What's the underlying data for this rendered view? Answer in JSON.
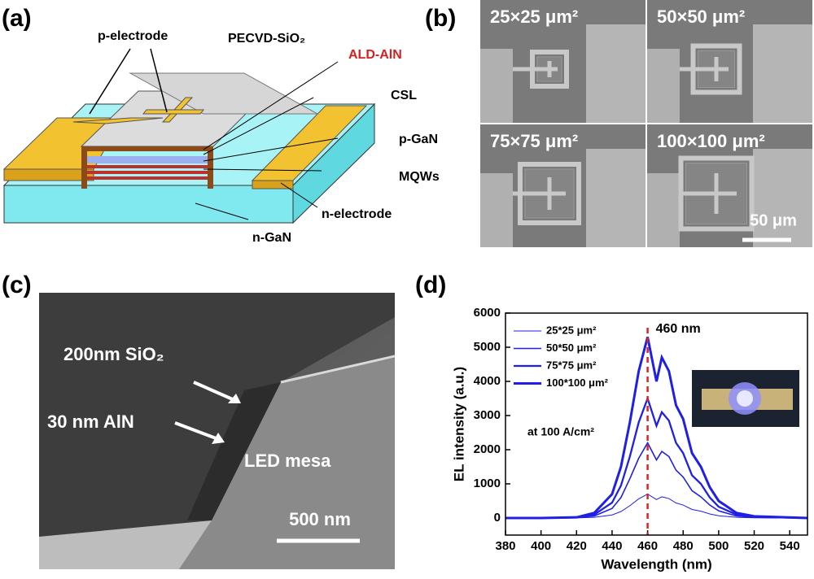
{
  "panels": {
    "a": {
      "label": "(a)",
      "labels": [
        "p-electrode",
        "PECVD-SiO₂",
        "ALD-AlN",
        "CSL",
        "p-GaN",
        "MQWs",
        "n-electrode",
        "n-GaN"
      ]
    },
    "b": {
      "label": "(b)",
      "images": [
        "25×25 μm²",
        "50×50 μm²",
        "75×75 μm²",
        "100×100 μm²"
      ],
      "scale_bar": "50 μm"
    },
    "c": {
      "label": "(c)",
      "labels": [
        "200nm SiO₂",
        "30 nm AlN",
        "LED mesa"
      ],
      "scale_bar": "500 nm"
    }
  },
  "chart_data": {
    "type": "line",
    "label": "(d)",
    "xlabel": "Wavelength (nm)",
    "ylabel": "EL intensity (a.u.)",
    "annotation": "at 100 A/cm²",
    "reference_line": {
      "x": 460,
      "label": "460 nm",
      "color": "#d62728"
    },
    "x": [
      380,
      400,
      420,
      430,
      440,
      445,
      450,
      455,
      460,
      465,
      468,
      472,
      476,
      480,
      485,
      490,
      495,
      500,
      510,
      520,
      550
    ],
    "series": [
      {
        "name": "25*25 μm²",
        "color": "#1f1fe6",
        "line_width": 1,
        "values": [
          0,
          0,
          3,
          20,
          90,
          190,
          360,
          560,
          700,
          540,
          620,
          570,
          440,
          380,
          250,
          200,
          120,
          65,
          20,
          5,
          0
        ]
      },
      {
        "name": "50*50 μm²",
        "color": "#1f1fe6",
        "line_width": 1.6,
        "values": [
          0,
          0,
          10,
          60,
          280,
          600,
          1150,
          1750,
          2200,
          1700,
          1950,
          1800,
          1400,
          1200,
          800,
          620,
          380,
          210,
          60,
          20,
          0
        ]
      },
      {
        "name": "75*75 μm²",
        "color": "#1f1fe6",
        "line_width": 2.3,
        "values": [
          0,
          0,
          15,
          100,
          450,
          950,
          1800,
          2800,
          3500,
          2700,
          3100,
          2850,
          2200,
          1900,
          1250,
          1000,
          600,
          330,
          100,
          30,
          0
        ]
      },
      {
        "name": "100*100 μm²",
        "color": "#1f1fe6",
        "line_width": 3,
        "values": [
          0,
          0,
          20,
          150,
          700,
          1500,
          2800,
          4300,
          5300,
          4000,
          4700,
          4300,
          3300,
          2900,
          1900,
          1500,
          900,
          500,
          150,
          50,
          0
        ]
      }
    ],
    "xlim": [
      380,
      550
    ],
    "xticks": [
      380,
      400,
      420,
      440,
      460,
      480,
      500,
      520,
      540
    ],
    "ylim": [
      -500,
      6000
    ],
    "yticks": [
      0,
      1000,
      2000,
      3000,
      4000,
      5000,
      6000
    ],
    "legend": "upper left"
  }
}
